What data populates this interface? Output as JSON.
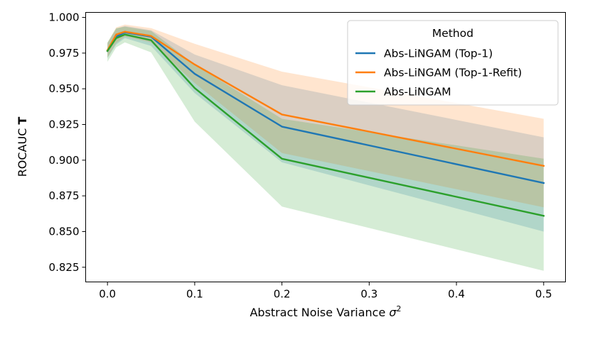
{
  "chart_data": {
    "type": "line",
    "x": [
      0.0,
      0.01,
      0.02,
      0.05,
      0.1,
      0.2,
      0.5
    ],
    "xlim": [
      -0.025,
      0.525
    ],
    "ylim": [
      0.8147,
      1.0035
    ],
    "xticks": [
      0.0,
      0.1,
      0.2,
      0.3,
      0.4,
      0.5
    ],
    "xtick_labels": [
      "0.0",
      "0.1",
      "0.2",
      "0.3",
      "0.4",
      "0.5"
    ],
    "yticks": [
      0.825,
      0.85,
      0.875,
      0.9,
      0.925,
      0.95,
      0.975,
      1.0
    ],
    "ytick_labels": [
      "0.825",
      "0.850",
      "0.875",
      "0.900",
      "0.925",
      "0.950",
      "0.975",
      "1.000"
    ],
    "xlabel_text": "Abstract Noise Variance ",
    "xlabel_symbol": "σ",
    "xlabel_superscript": "2",
    "ylabel_text": "ROCAUC ",
    "ylabel_bold": "T",
    "legend_title": "Method",
    "legend_location": "top-right",
    "series": [
      {
        "name": "Abs-LiNGAM (Top-1)",
        "color": "#1f77b4",
        "values": [
          0.9765,
          0.9865,
          0.9895,
          0.9865,
          0.9605,
          0.9235,
          0.884
        ],
        "lower": [
          0.9715,
          0.981,
          0.9855,
          0.98,
          0.947,
          0.8985,
          0.85
        ],
        "upper": [
          0.982,
          0.992,
          0.994,
          0.991,
          0.974,
          0.9525,
          0.916
        ]
      },
      {
        "name": "Abs-LiNGAM (Top-1-Refit)",
        "color": "#ff7f0e",
        "values": [
          0.977,
          0.988,
          0.99,
          0.987,
          0.967,
          0.932,
          0.896
        ],
        "lower": [
          0.972,
          0.982,
          0.9865,
          0.9825,
          0.954,
          0.905,
          0.867
        ],
        "upper": [
          0.982,
          0.993,
          0.995,
          0.9925,
          0.9815,
          0.962,
          0.929
        ]
      },
      {
        "name": "Abs-LiNGAM",
        "color": "#2ca02c",
        "values": [
          0.9765,
          0.9855,
          0.988,
          0.984,
          0.9505,
          0.901,
          0.861
        ],
        "lower": [
          0.969,
          0.979,
          0.9825,
          0.9755,
          0.927,
          0.8675,
          0.8225
        ],
        "upper": [
          0.9825,
          0.9925,
          0.9935,
          0.9905,
          0.967,
          0.929,
          0.901
        ]
      }
    ]
  }
}
